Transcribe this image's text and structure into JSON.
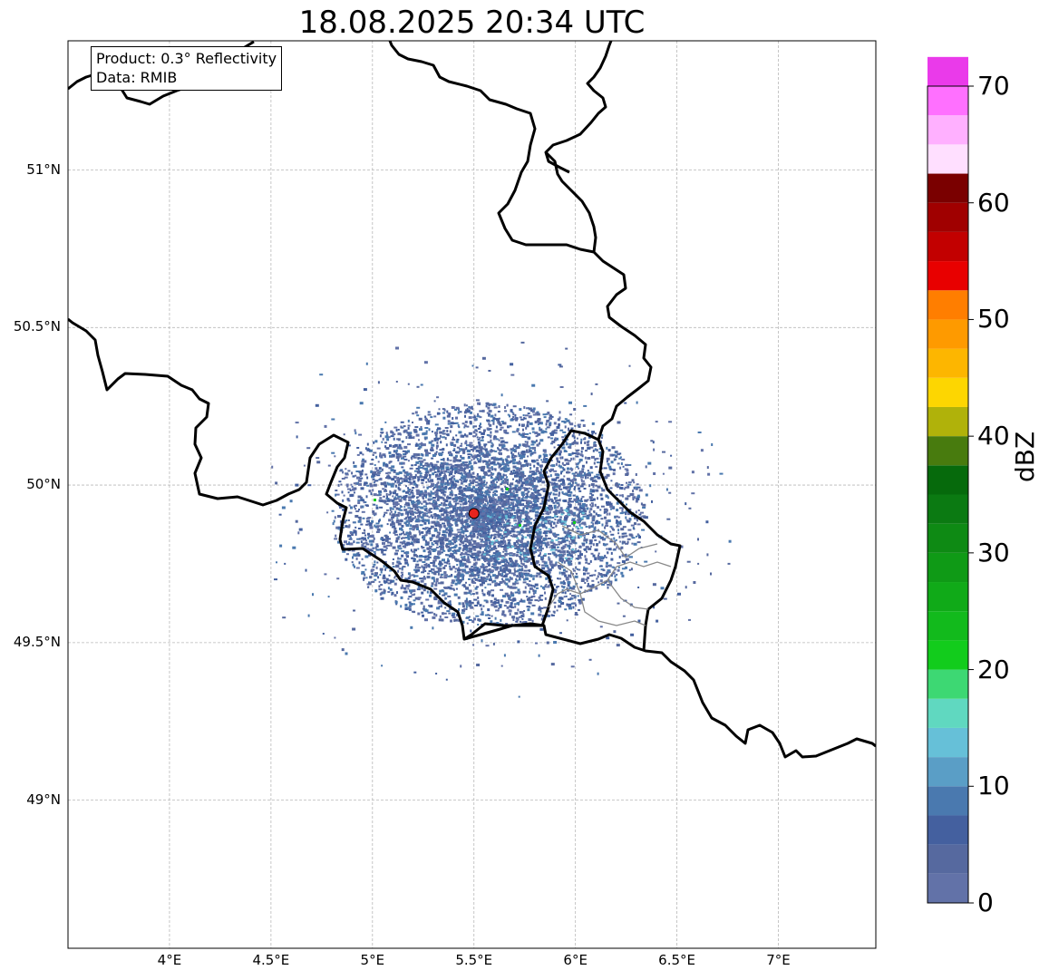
{
  "title": "18.08.2025 20:34 UTC",
  "info_box": {
    "product": "Product: 0.3° Reflectivity",
    "source": "Data: RMIB"
  },
  "axes": {
    "lat_labels": [
      "51°N",
      "50.5°N",
      "50°N",
      "49.5°N",
      "49°N"
    ],
    "lon_labels": [
      "4°E",
      "4.5°E",
      "5°E",
      "5.5°E",
      "6°E",
      "6.5°E",
      "7°E"
    ],
    "lat_range": [
      48.53,
      51.41
    ],
    "lon_range": [
      3.5,
      7.48
    ],
    "gridlines": "dashed gray"
  },
  "radar_site": {
    "lon": 5.5,
    "lat": 49.91,
    "marker_color": "#e8241e"
  },
  "colorbar": {
    "label": "dBZ",
    "tick_labels": [
      "0",
      "10",
      "20",
      "30",
      "40",
      "50",
      "60",
      "70"
    ],
    "range": [
      0,
      70
    ],
    "step": 2.5,
    "colors": [
      "#6272a8",
      "#56699f",
      "#44609f",
      "#4a79af",
      "#5a9ec6",
      "#66c0d8",
      "#60d8c0",
      "#3dd873",
      "#12cc1c",
      "#12ba1c",
      "#10aa18",
      "#0f9a16",
      "#0e8a14",
      "#0b7a12",
      "#066a0c",
      "#487b0e",
      "#b0b20a",
      "#fdd601",
      "#fdb600",
      "#fe9a00",
      "#ff7e00",
      "#e80000",
      "#c20000",
      "#a00000",
      "#7a0000",
      "#ffdfff",
      "#ffb0ff",
      "#ff70ff",
      "#ea3aea"
    ]
  }
}
